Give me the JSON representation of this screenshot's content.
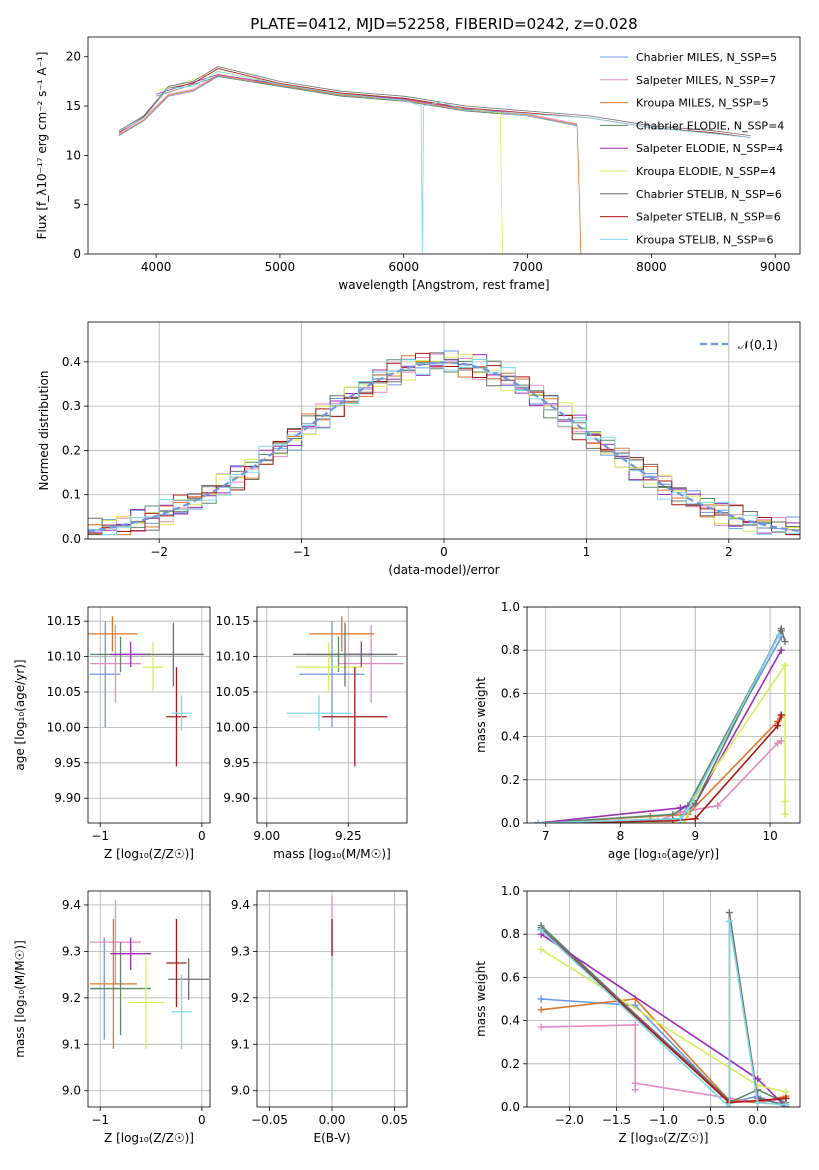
{
  "title": "PLATE=0412, MJD=52258, FIBERID=0242, z=0.028",
  "colors": {
    "c0": "#6d97e0",
    "c1": "#e58ac2",
    "c2": "#e0762a",
    "c3": "#5e8a6a",
    "c4": "#9b2fb5",
    "c5": "#d8ec5a",
    "c6": "#6e6e6e",
    "c7": "#a81818",
    "c8": "#7fd8e6",
    "grid": "#b0b0b0"
  },
  "chart_data": [
    {
      "id": "spectrum",
      "type": "line",
      "xlabel": "wavelength [Angstrom, rest frame]",
      "ylabel": "Flux [f_λ10⁻¹⁷ erg cm⁻² s⁻¹ A⁻¹]",
      "xlim": [
        3450,
        9200
      ],
      "ylim": [
        0,
        22
      ],
      "xticks": [
        4000,
        5000,
        6000,
        7000,
        8000,
        9000
      ],
      "yticks": [
        0,
        5,
        10,
        15,
        20
      ],
      "grid": false,
      "legend_position": "upper-right",
      "series": [
        {
          "name": "Chabrier MILES, N_SSP=5",
          "color": "c0",
          "x": [
            3700,
            3900,
            4100,
            4300,
            4500,
            5000,
            5500,
            6000,
            6500,
            7000,
            7200,
            7400
          ],
          "y": [
            12.0,
            13.5,
            16.0,
            16.5,
            18.0,
            17.0,
            16.0,
            15.5,
            14.5,
            14.0,
            13.5,
            13.0
          ]
        },
        {
          "name": "Salpeter MILES, N_SSP=7",
          "color": "c1",
          "x": [
            3700,
            3900,
            4100,
            4300,
            4500,
            5000,
            5500,
            6000,
            6500,
            7000,
            7200,
            7400
          ],
          "y": [
            12.2,
            13.8,
            16.2,
            16.7,
            18.2,
            17.2,
            16.2,
            15.7,
            14.7,
            14.2,
            13.7,
            13.2
          ]
        },
        {
          "name": "Kroupa MILES, N_SSP=5",
          "color": "c2",
          "x": [
            3700,
            3900,
            4100,
            4300,
            4500,
            5000,
            5500,
            6000,
            6500,
            7000,
            7200,
            7400,
            7420,
            7430
          ],
          "y": [
            12.1,
            13.6,
            16.1,
            16.6,
            18.1,
            17.1,
            16.1,
            15.6,
            14.6,
            14.1,
            13.6,
            13.1,
            5.0,
            0.0
          ]
        },
        {
          "name": "Chabrier ELODIE, N_SSP=4",
          "color": "c3",
          "x": [
            4000,
            4500,
            5000,
            5500,
            6000,
            6500,
            6800
          ],
          "y": [
            16.0,
            18.0,
            17.0,
            16.0,
            15.5,
            14.5,
            14.2
          ]
        },
        {
          "name": "Salpeter ELODIE, N_SSP=4",
          "color": "c4",
          "x": [
            4000,
            4500,
            5000,
            5500,
            6000,
            6500,
            6800
          ],
          "y": [
            16.2,
            18.2,
            17.2,
            16.2,
            15.7,
            14.7,
            14.4
          ]
        },
        {
          "name": "Kroupa ELODIE, N_SSP=4",
          "color": "c5",
          "x": [
            4000,
            4500,
            5000,
            5500,
            6000,
            6500,
            6780,
            6790,
            6800
          ],
          "y": [
            16.5,
            18.5,
            17.3,
            16.3,
            15.8,
            14.8,
            14.3,
            5.0,
            0.0
          ]
        },
        {
          "name": "Chabrier STELIB, N_SSP=6",
          "color": "c6",
          "x": [
            3700,
            3900,
            4100,
            4300,
            4500,
            5000,
            5500,
            6000,
            6500,
            7000,
            7500,
            8000,
            8500,
            8800
          ],
          "y": [
            12.5,
            14.0,
            17.0,
            17.5,
            19.0,
            17.5,
            16.5,
            16.0,
            15.0,
            14.5,
            14.0,
            13.0,
            12.5,
            12.0
          ]
        },
        {
          "name": "Salpeter STELIB, N_SSP=6",
          "color": "c7",
          "x": [
            3700,
            3900,
            4100,
            4300,
            4500,
            5000,
            5500,
            6000,
            6500,
            7000,
            7500,
            8000,
            8500,
            8800
          ],
          "y": [
            12.3,
            13.9,
            16.8,
            17.3,
            18.8,
            17.3,
            16.3,
            15.8,
            14.8,
            14.3,
            13.8,
            12.8,
            12.3,
            11.8
          ]
        },
        {
          "name": "Kroupa STELIB, N_SSP=6",
          "color": "c8",
          "x": [
            3700,
            3900,
            4100,
            4300,
            4500,
            5000,
            5500,
            6000,
            6140,
            6150,
            6160,
            6300,
            6500,
            7000,
            7500,
            8000,
            8500,
            8800
          ],
          "y": [
            12.4,
            13.8,
            16.8,
            17.0,
            18.5,
            17.2,
            16.2,
            15.6,
            15.0,
            0.0,
            15.0,
            15.4,
            14.6,
            14.2,
            13.8,
            12.8,
            12.2,
            11.8
          ]
        }
      ]
    },
    {
      "id": "residuals",
      "type": "line",
      "xlabel": "(data-model)/error",
      "ylabel": "Normed distribution",
      "xlim": [
        -2.5,
        2.5
      ],
      "ylim": [
        0,
        0.49
      ],
      "xticks": [
        -2,
        -1,
        0,
        1,
        2
      ],
      "yticks": [
        0.0,
        0.1,
        0.2,
        0.3,
        0.4
      ],
      "grid": true,
      "legend_position": "upper-right",
      "legend": "𝒩(0,1)",
      "reference": {
        "name": "normal",
        "mean": 0,
        "sigma": 1,
        "color": "c0"
      },
      "hist_bins": {
        "start": -2.5,
        "width": 0.1,
        "count": 50
      },
      "hist_series": [
        {
          "color": "c0",
          "offset": 0
        },
        {
          "color": "c1",
          "offset": 1
        },
        {
          "color": "c2",
          "offset": 2
        },
        {
          "color": "c3",
          "offset": 3
        },
        {
          "color": "c4",
          "offset": 4
        },
        {
          "color": "c5",
          "offset": 5
        },
        {
          "color": "c6",
          "offset": 6
        },
        {
          "color": "c7",
          "offset": 7
        },
        {
          "color": "c8",
          "offset": 8
        }
      ]
    },
    {
      "id": "age-vs-z",
      "type": "scatter",
      "xlabel": "Z [log₁₀(Z/Z☉)]",
      "ylabel": "age  [log₁₀(age/yr)]",
      "xlim": [
        -1.12,
        0.08
      ],
      "ylim": [
        9.865,
        10.17
      ],
      "xticks": [
        -1,
        0
      ],
      "yticks": [
        9.9,
        9.95,
        10.0,
        10.05,
        10.1,
        10.15
      ],
      "grid": true,
      "points": [
        {
          "color": "c0",
          "x": -0.95,
          "y": 10.075,
          "xerr": 0.15,
          "yerr": 0.075
        },
        {
          "color": "c1",
          "x": -0.85,
          "y": 10.09,
          "xerr": 0.25,
          "yerr": 0.055
        },
        {
          "color": "c2",
          "x": -0.88,
          "y": 10.132,
          "xerr": 0.25,
          "yerr": 0.025
        },
        {
          "color": "c3",
          "x": -0.8,
          "y": 10.103,
          "xerr": 0.3,
          "yerr": 0.025
        },
        {
          "color": "c4",
          "x": -0.7,
          "y": 10.103,
          "xerr": 0.2,
          "yerr": 0.018
        },
        {
          "color": "c5",
          "x": -0.48,
          "y": 10.085,
          "xerr": 0.1,
          "yerr": 0.035
        },
        {
          "color": "c6",
          "x": -0.28,
          "y": 10.103,
          "xerr": 0.3,
          "yerr": 0.045
        },
        {
          "color": "c7",
          "x": -0.25,
          "y": 10.015,
          "xerr": 0.1,
          "yerr": 0.07
        },
        {
          "color": "c8",
          "x": -0.2,
          "y": 10.02,
          "xerr": 0.1,
          "yerr": 0.025
        }
      ]
    },
    {
      "id": "age-vs-mass",
      "type": "scatter",
      "xlabel": "mass [log₁₀(M/M☉)]",
      "ylabel": "",
      "xlim": [
        8.97,
        9.43
      ],
      "ylim": [
        9.865,
        10.17
      ],
      "xticks": [
        9.0,
        9.25
      ],
      "yticks": [
        9.9,
        9.95,
        10.0,
        10.05,
        10.1,
        10.15
      ],
      "grid": true,
      "points": [
        {
          "color": "c0",
          "x": 9.2,
          "y": 10.075,
          "xerr": 0.1,
          "yerr": 0.075
        },
        {
          "color": "c1",
          "x": 9.32,
          "y": 10.09,
          "xerr": 0.1,
          "yerr": 0.055
        },
        {
          "color": "c2",
          "x": 9.23,
          "y": 10.132,
          "xerr": 0.1,
          "yerr": 0.025
        },
        {
          "color": "c3",
          "x": 9.22,
          "y": 10.103,
          "xerr": 0.1,
          "yerr": 0.025
        },
        {
          "color": "c4",
          "x": 9.29,
          "y": 10.103,
          "xerr": 0.04,
          "yerr": 0.018
        },
        {
          "color": "c5",
          "x": 9.19,
          "y": 10.085,
          "xerr": 0.1,
          "yerr": 0.035
        },
        {
          "color": "c6",
          "x": 9.24,
          "y": 10.103,
          "xerr": 0.16,
          "yerr": 0.045
        },
        {
          "color": "c7",
          "x": 9.27,
          "y": 10.015,
          "xerr": 0.1,
          "yerr": 0.07
        },
        {
          "color": "c8",
          "x": 9.16,
          "y": 10.02,
          "xerr": 0.1,
          "yerr": 0.025
        }
      ]
    },
    {
      "id": "weight-vs-age",
      "type": "line",
      "xlabel": "age  [log₁₀(age/yr)]",
      "ylabel": "mass weight",
      "xlim": [
        6.75,
        10.4
      ],
      "ylim": [
        0,
        1.0
      ],
      "xticks": [
        7,
        8,
        9,
        10
      ],
      "yticks": [
        0.0,
        0.2,
        0.4,
        0.6,
        0.8,
        1.0
      ],
      "grid": true,
      "series": [
        {
          "color": "c0",
          "x": [
            6.9,
            8.8,
            8.9,
            10.15
          ],
          "y": [
            0.0,
            0.02,
            0.08,
            0.86
          ]
        },
        {
          "color": "c1",
          "x": [
            6.9,
            8.5,
            8.8,
            9.3,
            10.1,
            10.15
          ],
          "y": [
            0.0,
            0.01,
            0.05,
            0.08,
            0.37,
            0.38
          ]
        },
        {
          "color": "c2",
          "x": [
            6.9,
            8.4,
            8.9,
            10.1,
            10.15
          ],
          "y": [
            0.0,
            0.03,
            0.04,
            0.47,
            0.49
          ]
        },
        {
          "color": "c3",
          "x": [
            6.9,
            8.7,
            8.9,
            10.15
          ],
          "y": [
            0.0,
            0.04,
            0.08,
            0.89
          ]
        },
        {
          "color": "c4",
          "x": [
            6.9,
            8.8,
            9.0,
            10.15
          ],
          "y": [
            0.0,
            0.07,
            0.09,
            0.8
          ]
        },
        {
          "color": "c5",
          "x": [
            6.9,
            8.85,
            9.0,
            10.2,
            10.2,
            10.2
          ],
          "y": [
            0.0,
            0.0,
            0.12,
            0.73,
            0.1,
            0.04
          ]
        },
        {
          "color": "c6",
          "x": [
            6.9,
            8.8,
            9.0,
            10.15,
            10.2
          ],
          "y": [
            0.0,
            0.02,
            0.09,
            0.9,
            0.84
          ]
        },
        {
          "color": "c7",
          "x": [
            6.9,
            8.7,
            9.0,
            10.1,
            10.15
          ],
          "y": [
            0.0,
            0.01,
            0.02,
            0.45,
            0.5
          ]
        },
        {
          "color": "c8",
          "x": [
            6.9,
            8.8,
            8.9,
            10.12
          ],
          "y": [
            0.0,
            0.02,
            0.06,
            0.87
          ]
        }
      ]
    },
    {
      "id": "mass-vs-z",
      "type": "scatter",
      "xlabel": "Z [log₁₀(Z/Z☉)]",
      "ylabel": "mass [log₁₀(M/M☉)]",
      "xlim": [
        -1.12,
        0.08
      ],
      "ylim": [
        8.965,
        9.43
      ],
      "xticks": [
        -1,
        0
      ],
      "yticks": [
        9.0,
        9.1,
        9.2,
        9.3,
        9.4
      ],
      "grid": true,
      "points": [
        {
          "color": "c0",
          "x": -0.96,
          "y": 9.22,
          "xerr": 0.12,
          "yerr": 0.11
        },
        {
          "color": "c1",
          "x": -0.85,
          "y": 9.32,
          "xerr": 0.25,
          "yerr": 0.09
        },
        {
          "color": "c2",
          "x": -0.87,
          "y": 9.23,
          "xerr": 0.23,
          "yerr": 0.14
        },
        {
          "color": "c3",
          "x": -0.8,
          "y": 9.22,
          "xerr": 0.3,
          "yerr": 0.1
        },
        {
          "color": "c4",
          "x": -0.7,
          "y": 9.295,
          "xerr": 0.2,
          "yerr": 0.035
        },
        {
          "color": "c5",
          "x": -0.55,
          "y": 9.19,
          "xerr": 0.18,
          "yerr": 0.1
        },
        {
          "color": "c6",
          "x": -0.13,
          "y": 9.24,
          "xerr": 0.2,
          "yerr": 0.045
        },
        {
          "color": "c7",
          "x": -0.25,
          "y": 9.275,
          "xerr": 0.1,
          "yerr": 0.095
        },
        {
          "color": "c8",
          "x": -0.2,
          "y": 9.17,
          "xerr": 0.1,
          "yerr": 0.08
        }
      ]
    },
    {
      "id": "mass-vs-ebv",
      "type": "scatter",
      "xlabel": "E(B-V)",
      "ylabel": "",
      "xlim": [
        -0.06,
        0.06
      ],
      "ylim": [
        8.965,
        9.43
      ],
      "xticks": [
        -0.05,
        0.0,
        0.05
      ],
      "yticks": [
        9.0,
        9.1,
        9.2,
        9.3,
        9.4
      ],
      "grid": true,
      "points": [
        {
          "color": "c1",
          "x": 0.0,
          "y": 9.32,
          "xerr": 0.0,
          "yerr": 0.1
        },
        {
          "color": "c8",
          "x": 0.0,
          "y": 9.17,
          "xerr": 0.0,
          "yerr": 0.19
        },
        {
          "color": "c7",
          "x": 0.0,
          "y": 9.33,
          "xerr": 0.0,
          "yerr": 0.04
        }
      ]
    },
    {
      "id": "weight-vs-z",
      "type": "line",
      "xlabel": "Z [log₁₀(Z/Z☉)]",
      "ylabel": "mass weight",
      "xlim": [
        -2.45,
        0.45
      ],
      "ylim": [
        0,
        1.0
      ],
      "xticks": [
        -2.0,
        -1.5,
        -1.0,
        -0.5,
        0.0
      ],
      "yticks": [
        0.0,
        0.2,
        0.4,
        0.6,
        0.8,
        1.0
      ],
      "grid": true,
      "series": [
        {
          "color": "c0",
          "x": [
            -2.3,
            -1.3,
            -0.3,
            0.0,
            0.3
          ],
          "y": [
            0.5,
            0.47,
            0.02,
            0.05,
            0.0
          ]
        },
        {
          "color": "c1",
          "x": [
            -2.3,
            -1.3,
            -1.3,
            -1.3,
            0.0,
            0.3
          ],
          "y": [
            0.37,
            0.38,
            0.08,
            0.11,
            0.02,
            0.04
          ]
        },
        {
          "color": "c2",
          "x": [
            -2.3,
            -1.3,
            -0.3,
            0.0,
            0.3
          ],
          "y": [
            0.45,
            0.5,
            0.03,
            0.02,
            0.05
          ]
        },
        {
          "color": "c3",
          "x": [
            -2.3,
            -0.3,
            0.0,
            0.3
          ],
          "y": [
            0.84,
            0.02,
            0.08,
            0.02
          ]
        },
        {
          "color": "c4",
          "x": [
            -2.3,
            0.0,
            0.3
          ],
          "y": [
            0.8,
            0.13,
            0.0
          ]
        },
        {
          "color": "c5",
          "x": [
            -2.3,
            0.0,
            0.3
          ],
          "y": [
            0.73,
            0.1,
            0.07
          ]
        },
        {
          "color": "c6",
          "x": [
            -2.3,
            -0.3,
            -0.3,
            0.0,
            0.3
          ],
          "y": [
            0.83,
            0.03,
            0.9,
            0.04,
            0.01
          ]
        },
        {
          "color": "c7",
          "x": [
            -2.3,
            -0.3,
            0.0,
            0.3
          ],
          "y": [
            0.82,
            0.02,
            0.03,
            0.04
          ]
        },
        {
          "color": "c8",
          "x": [
            -2.3,
            -0.3,
            -0.3,
            0.0,
            0.3
          ],
          "y": [
            0.82,
            0.0,
            0.86,
            0.02,
            0.01
          ]
        }
      ]
    }
  ]
}
